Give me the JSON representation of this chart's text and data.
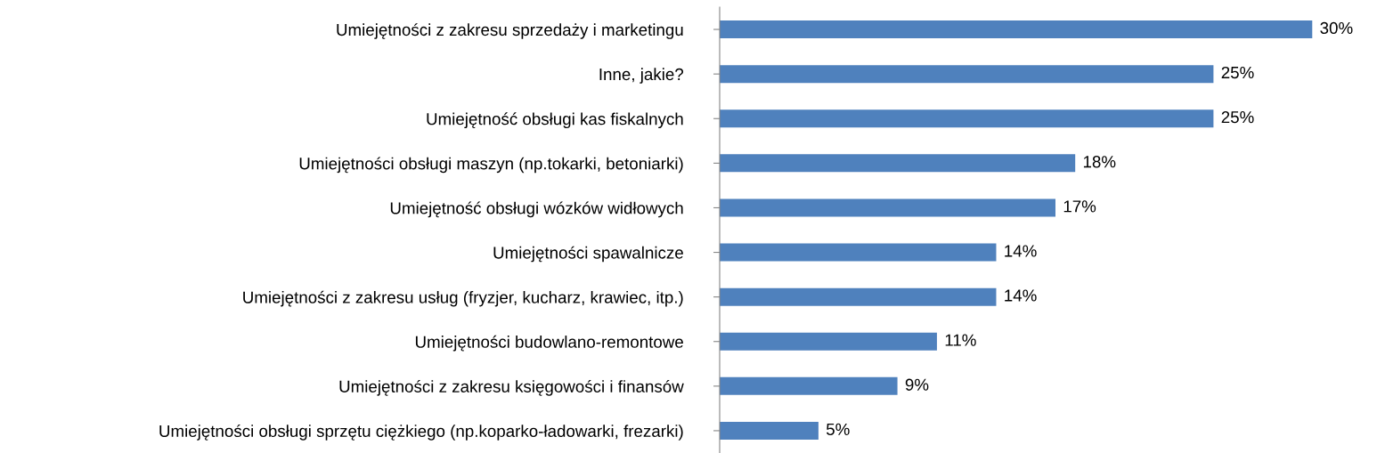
{
  "chart_data": {
    "type": "bar",
    "orientation": "horizontal",
    "categories": [
      "Umiejętności z zakresu sprzedaży i marketingu",
      "Inne, jakie?",
      "Umiejętność obsługi kas fiskalnych",
      "Umiejętności obsługi maszyn (np.tokarki, betoniarki)",
      "Umiejętność obsługi wózków widłowych",
      "Umiejętności spawalnicze",
      "Umiejętności z zakresu usług (fryzjer, kucharz, krawiec, itp.)",
      "Umiejętności budowlano-remontowe",
      "Umiejętności z zakresu księgowości i finansów",
      "Umiejętności obsługi sprzętu ciężkiego (np.koparko-ładowarki, frezarki)"
    ],
    "values": [
      30,
      25,
      25,
      18,
      17,
      14,
      14,
      11,
      9,
      5
    ],
    "value_labels": [
      "30%",
      "25%",
      "25%",
      "18%",
      "17%",
      "14%",
      "14%",
      "11%",
      "9%",
      "5%"
    ],
    "color": "#4f81bd",
    "grid": false,
    "legend": false
  }
}
